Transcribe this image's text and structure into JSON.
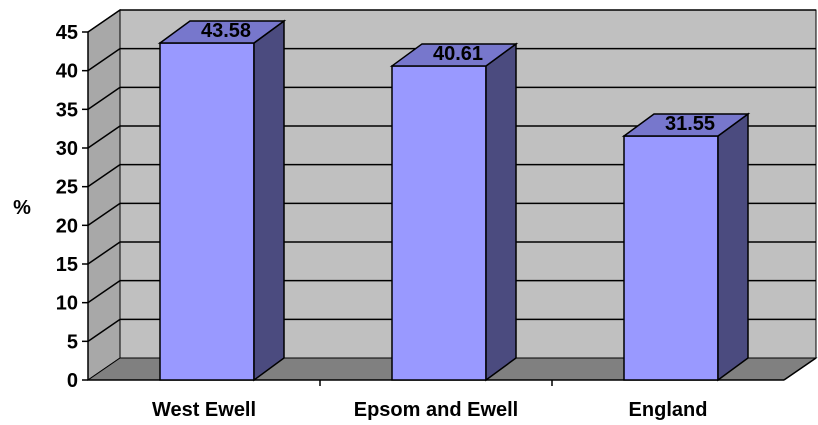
{
  "chart_data": {
    "type": "bar",
    "title": "",
    "xlabel": "",
    "ylabel": "%",
    "categories": [
      "West Ewell",
      "Epsom and Ewell",
      "England"
    ],
    "values": [
      43.58,
      40.61,
      31.55
    ],
    "data_labels": [
      "43.58",
      "40.61",
      "31.55"
    ],
    "ylim": [
      0,
      45
    ],
    "yticks": [
      0,
      5,
      10,
      15,
      20,
      25,
      30,
      35,
      40,
      45
    ],
    "grid": true,
    "legend": "none",
    "style": "3d-column"
  },
  "colors": {
    "bar_front": "#9999ff",
    "bar_side": "#4b4b7f",
    "bar_top": "#7777cc",
    "wall": "#c0c0c0",
    "floor": "#808080",
    "grid": "#000000"
  }
}
